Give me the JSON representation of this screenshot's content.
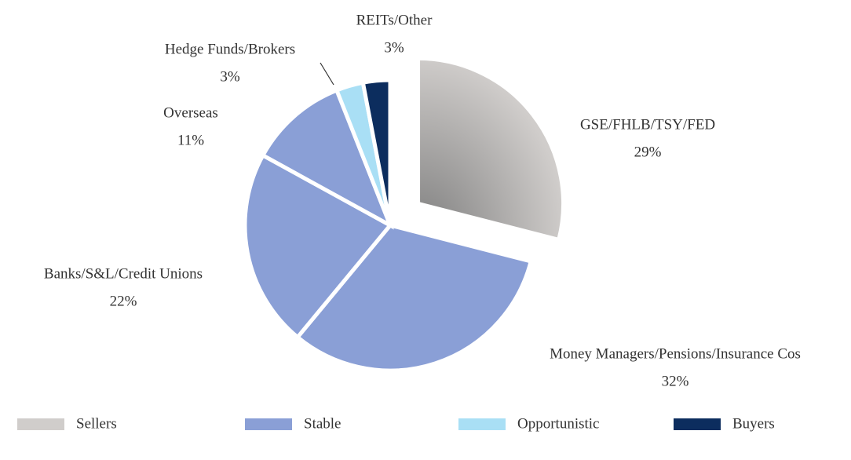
{
  "chart_data": {
    "type": "pie",
    "categories": [
      "GSE/FHLB/TSY/FED",
      "Money Managers/Pensions/Insurance Cos",
      "Banks/S&L/Credit Unions",
      "Overseas",
      "Hedge Funds/Brokers",
      "REITs/Other"
    ],
    "values": [
      29,
      32,
      22,
      11,
      3,
      3
    ],
    "value_labels": [
      "29%",
      "32%",
      "22%",
      "11%",
      "3%",
      "3%"
    ],
    "colors": [
      "#d0cdcb",
      "#8a9fd6",
      "#8a9fd6",
      "#8a9fd6",
      "#a9dff5",
      "#0c2d5e"
    ],
    "legend": [
      {
        "name": "Sellers",
        "color": "#d0cdcb"
      },
      {
        "name": "Stable",
        "color": "#8a9fd6"
      },
      {
        "name": "Opportunistic",
        "color": "#a9dff5"
      },
      {
        "name": "Buyers",
        "color": "#0c2d5e"
      }
    ]
  }
}
